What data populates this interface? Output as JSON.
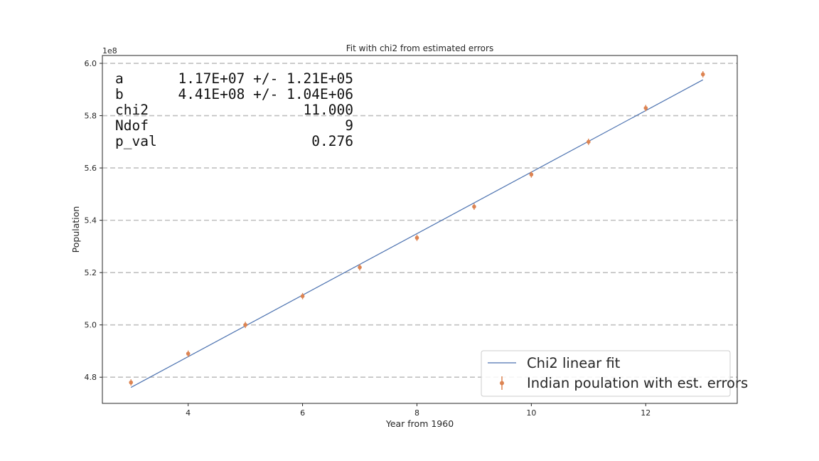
{
  "chart_data": {
    "type": "scatter",
    "title": "Fit with chi2 from estimated errors",
    "xlabel": "Year from 1960",
    "ylabel": "Population",
    "y_offset_label": "1e8",
    "xlim": [
      2.5,
      13.6
    ],
    "ylim": [
      4.7,
      6.03
    ],
    "x_ticks": [
      4,
      6,
      8,
      10,
      12
    ],
    "x_tick_labels": [
      "4",
      "6",
      "8",
      "10",
      "12"
    ],
    "y_ticks": [
      4.8,
      5.0,
      5.2,
      5.4,
      5.6,
      5.8,
      6.0
    ],
    "y_tick_labels": [
      "4.8",
      "5.0",
      "5.2",
      "5.4",
      "5.6",
      "5.8",
      "6.0"
    ],
    "y_grid": true,
    "y_grid_style": "dashed",
    "legend_position": "lower-right",
    "series": [
      {
        "name": "Chi2 linear fit",
        "kind": "line",
        "color": "#4c72b0",
        "x": [
          3,
          13
        ],
        "y": [
          4.761,
          5.937
        ]
      },
      {
        "name": "Indian poulation with est. errors",
        "kind": "errorbar",
        "color": "#dd8452",
        "x": [
          3,
          4,
          5,
          6,
          7,
          8,
          9,
          10,
          11,
          12,
          13
        ],
        "y": [
          4.78,
          4.89,
          5.0,
          5.11,
          5.22,
          5.333,
          5.452,
          5.575,
          5.7,
          5.829,
          5.958
        ],
        "yerr": [
          0.012,
          0.012,
          0.012,
          0.012,
          0.012,
          0.012,
          0.012,
          0.012,
          0.012,
          0.012,
          0.012
        ]
      }
    ],
    "stats_box": [
      {
        "name": "a",
        "value": "1.17E+07 +/- 1.21E+05"
      },
      {
        "name": "b",
        "value": "4.41E+08 +/- 1.04E+06"
      },
      {
        "name": "chi2",
        "value": "11.000"
      },
      {
        "name": "Ndof",
        "value": "9"
      },
      {
        "name": "p_val",
        "value": "0.276"
      }
    ]
  }
}
